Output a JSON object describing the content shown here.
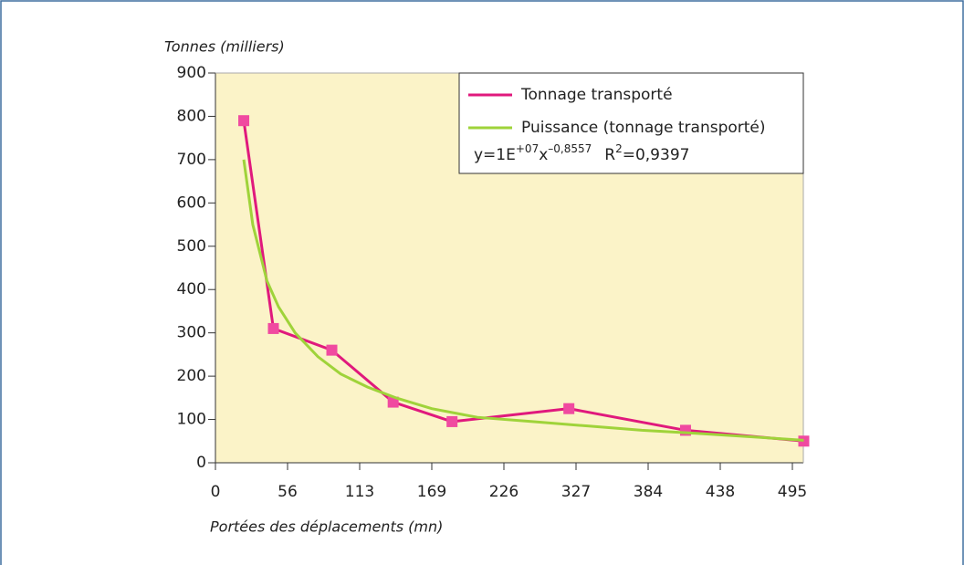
{
  "chart_data": {
    "type": "line",
    "y_label": "Tonnes (milliers)",
    "x_label": "Portées des déplacements (mn)",
    "xlim": [
      0,
      506
    ],
    "xticks": [
      0,
      56,
      113,
      169,
      226,
      327,
      384,
      438,
      495
    ],
    "ylim": [
      0,
      900
    ],
    "yticks": [
      0,
      100,
      200,
      300,
      400,
      500,
      600,
      700,
      800,
      900
    ],
    "legend": "top-right",
    "equation": [
      "y=1E",
      "+07",
      "x",
      "–0,8557",
      "R",
      "2",
      "=0,9397"
    ],
    "series": [
      {
        "name": "Tonnage transporté",
        "color": "#e0197d",
        "marker": "square",
        "marker_color": "#f04aa0",
        "x": [
          22,
          45,
          91,
          139,
          185,
          317,
          412,
          504
        ],
        "values": [
          790,
          310,
          260,
          140,
          95,
          125,
          75,
          50
        ]
      },
      {
        "name": "Puissance (tonnage transporté)",
        "color": "#9fd33a",
        "x": [
          22,
          29,
          40,
          49,
          62,
          80,
          98,
          119,
          141,
          169,
          205,
          266,
          336,
          379,
          420,
          462,
          504
        ],
        "values": [
          700,
          550,
          420,
          360,
          300,
          245,
          205,
          175,
          150,
          125,
          105,
          95,
          85,
          75,
          68,
          60,
          52
        ]
      }
    ]
  }
}
